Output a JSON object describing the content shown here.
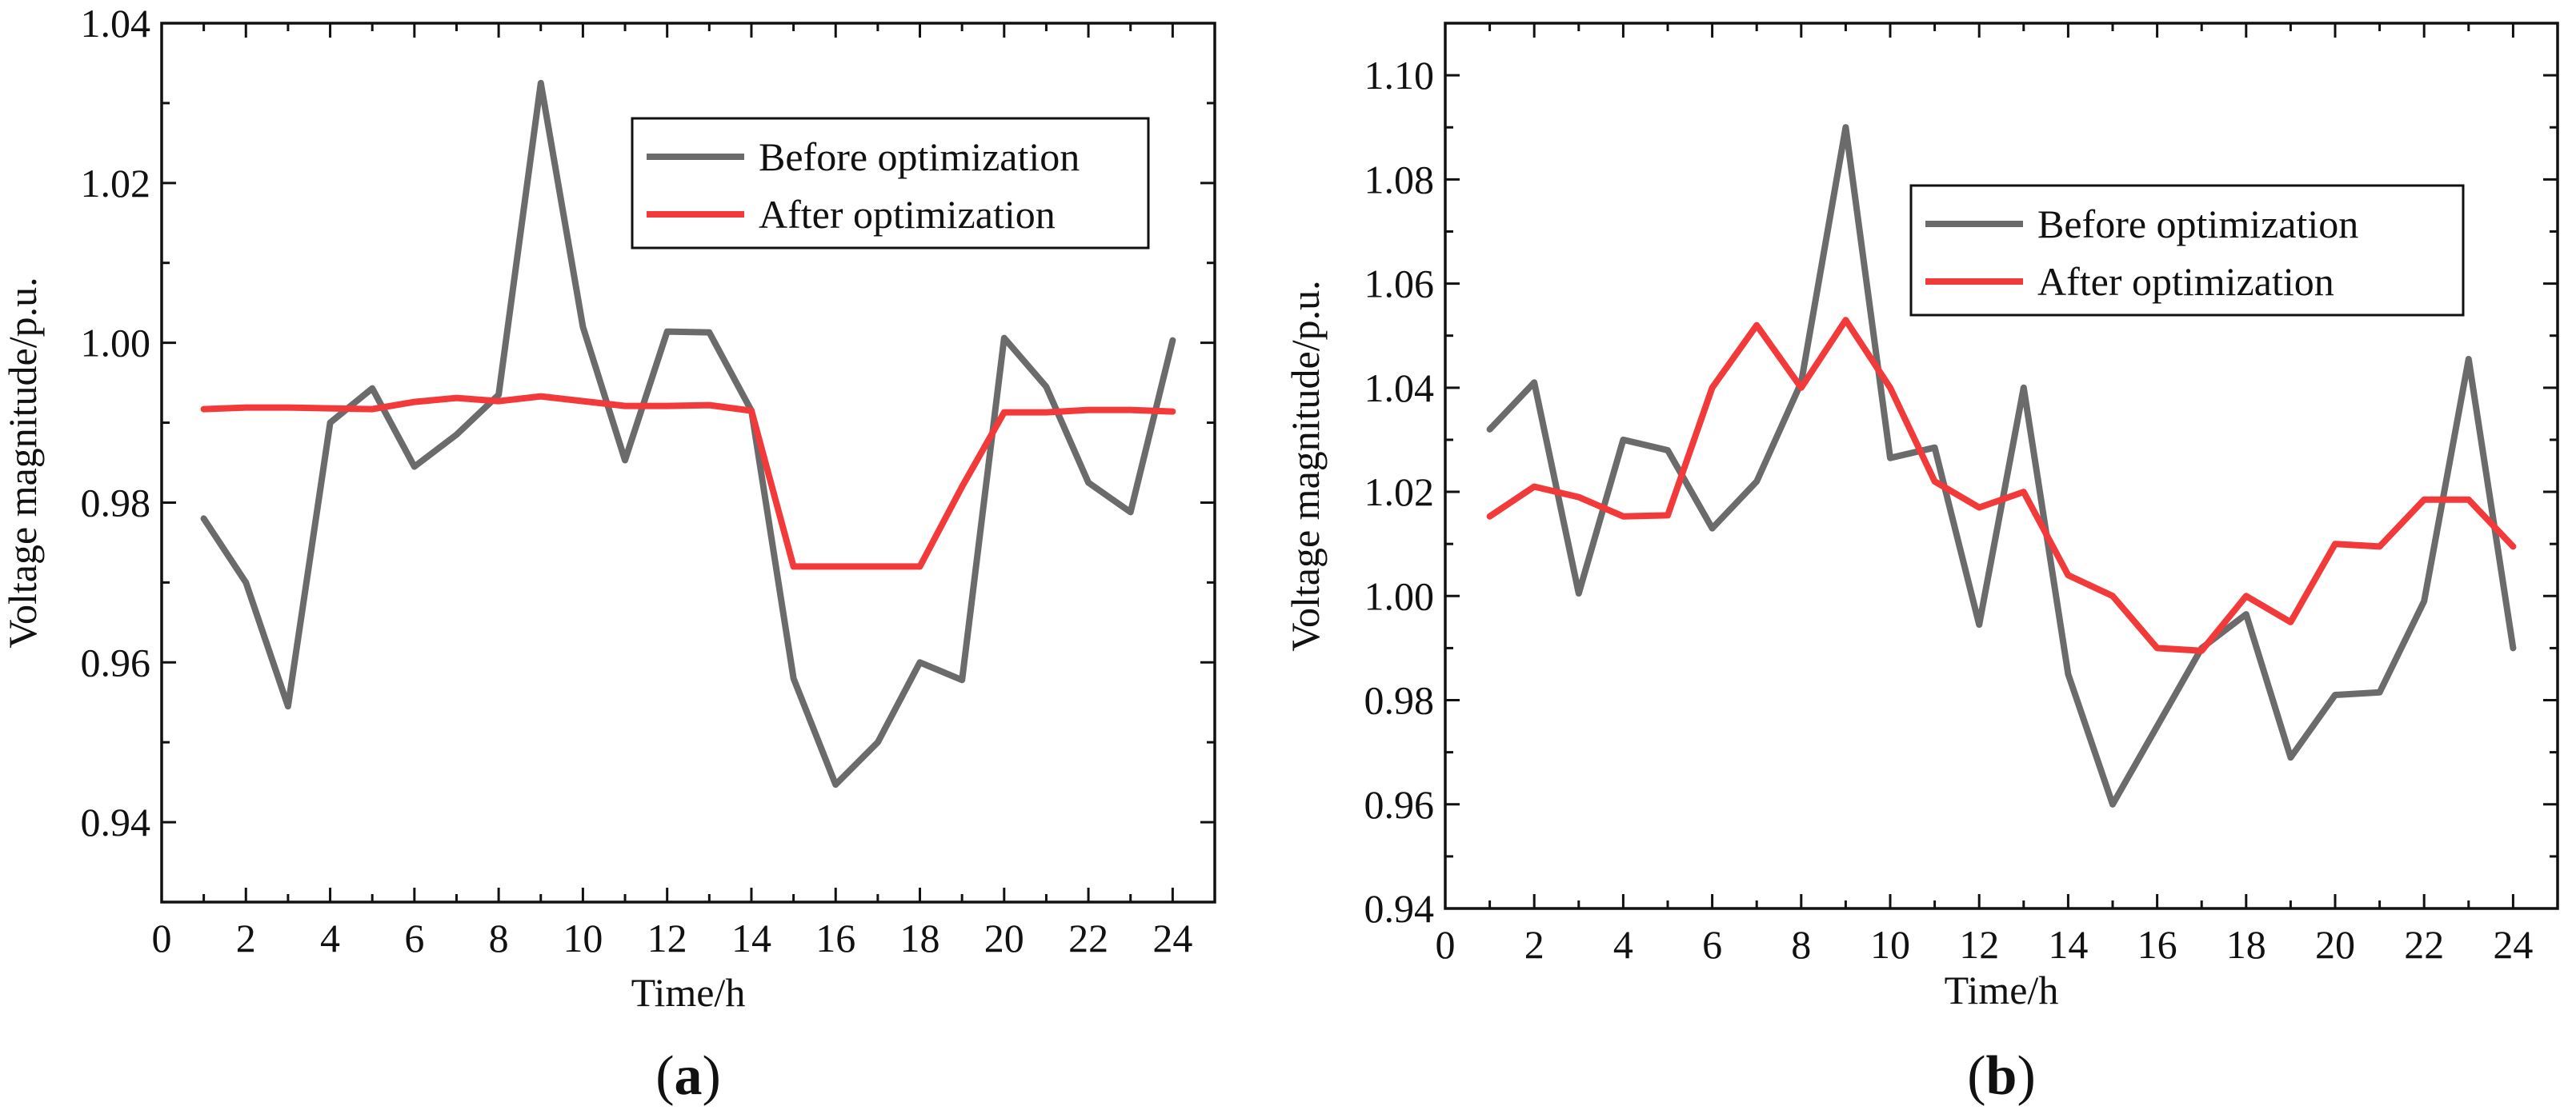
{
  "chart_data": [
    {
      "type": "line",
      "panel": "a",
      "xlabel": "Time/h",
      "ylabel": "Voltage magnitude/p.u.",
      "xlim": [
        0,
        25
      ],
      "ylim": [
        0.93,
        1.04
      ],
      "xticks": [
        0,
        2,
        4,
        6,
        8,
        10,
        12,
        14,
        16,
        18,
        20,
        22,
        24
      ],
      "yticks": [
        0.94,
        0.96,
        0.98,
        1.0,
        1.02,
        1.04
      ],
      "ytick_labels": [
        "0.94",
        "0.96",
        "0.98",
        "1.00",
        "1.02",
        "1.04"
      ],
      "legend_position": "top-right",
      "x": [
        1,
        2,
        3,
        4,
        5,
        6,
        7,
        8,
        9,
        10,
        11,
        12,
        13,
        14,
        15,
        16,
        17,
        18,
        19,
        20,
        21,
        22,
        23,
        24
      ],
      "series": [
        {
          "name": "Before optimization",
          "color": "#6b6b6b",
          "values": [
            0.978,
            0.97,
            0.9545,
            0.99,
            0.9943,
            0.9845,
            0.9885,
            0.9935,
            1.0325,
            1.002,
            0.9853,
            1.0014,
            1.0013,
            0.9915,
            0.958,
            0.9447,
            0.95,
            0.96,
            0.9578,
            1.0006,
            0.9945,
            0.9825,
            0.9788,
            1.0003
          ]
        },
        {
          "name": "After optimization",
          "color": "#f23a3a",
          "values": [
            0.9917,
            0.9919,
            0.9919,
            0.9918,
            0.9917,
            0.9926,
            0.9931,
            0.9927,
            0.9933,
            0.9927,
            0.9921,
            0.9921,
            0.9922,
            0.9915,
            0.972,
            0.972,
            0.972,
            0.972,
            0.982,
            0.9913,
            0.9913,
            0.9916,
            0.9916,
            0.9914
          ]
        }
      ],
      "panel_label": "a"
    },
    {
      "type": "line",
      "panel": "b",
      "xlabel": "Time/h",
      "ylabel": "Voltage magnitude/p.u.",
      "xlim": [
        0,
        25
      ],
      "ylim": [
        0.94,
        1.11
      ],
      "xticks": [
        0,
        2,
        4,
        6,
        8,
        10,
        12,
        14,
        16,
        18,
        20,
        22,
        24
      ],
      "yticks": [
        0.94,
        0.96,
        0.98,
        1.0,
        1.02,
        1.04,
        1.06,
        1.08,
        1.1
      ],
      "ytick_labels": [
        "0.94",
        "0.96",
        "0.98",
        "1.00",
        "1.02",
        "1.04",
        "1.06",
        "1.08",
        "1.10"
      ],
      "legend_position": "upper-right",
      "x": [
        1,
        2,
        3,
        4,
        5,
        6,
        7,
        8,
        9,
        10,
        11,
        12,
        13,
        14,
        15,
        16,
        17,
        18,
        19,
        20,
        21,
        22,
        23,
        24
      ],
      "series": [
        {
          "name": "Before optimization",
          "color": "#6b6b6b",
          "values": [
            1.032,
            1.041,
            1.0005,
            1.03,
            1.028,
            1.013,
            1.022,
            1.041,
            1.09,
            1.0265,
            1.0285,
            0.9945,
            1.04,
            0.985,
            0.96,
            0.975,
            0.99,
            0.9965,
            0.969,
            0.981,
            0.9815,
            0.999,
            1.0455,
            0.99
          ]
        },
        {
          "name": "After optimization",
          "color": "#f23a3a",
          "values": [
            1.0153,
            1.021,
            1.019,
            1.0153,
            1.0155,
            1.04,
            1.052,
            1.04,
            1.053,
            1.04,
            1.022,
            1.017,
            1.02,
            1.004,
            1.0,
            0.99,
            0.9895,
            1.0,
            0.995,
            1.01,
            1.0095,
            1.0185,
            1.0185,
            1.0095
          ]
        }
      ],
      "panel_label": "b"
    }
  ]
}
